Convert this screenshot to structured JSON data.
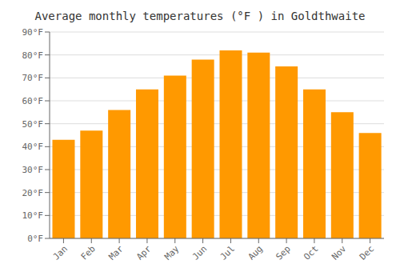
{
  "chart_data": {
    "type": "bar",
    "title": "Average monthly temperatures (°F ) in Goldthwaite",
    "categories": [
      "Jan",
      "Feb",
      "Mar",
      "Apr",
      "May",
      "Jun",
      "Jul",
      "Aug",
      "Sep",
      "Oct",
      "Nov",
      "Dec"
    ],
    "values": [
      43,
      47,
      56,
      65,
      71,
      78,
      82,
      81,
      75,
      65,
      55,
      46
    ],
    "color": "#FF9900",
    "ylim": [
      0,
      90
    ],
    "yticks": [
      {
        "value": 0,
        "label": "0°F"
      },
      {
        "value": 10,
        "label": "10°F"
      },
      {
        "value": 20,
        "label": "20°F"
      },
      {
        "value": 30,
        "label": "30°F"
      },
      {
        "value": 40,
        "label": "40°F"
      },
      {
        "value": 50,
        "label": "50°F"
      },
      {
        "value": 60,
        "label": "60°F"
      },
      {
        "value": 70,
        "label": "70°F"
      },
      {
        "value": 80,
        "label": "80°F"
      },
      {
        "value": 90,
        "label": "90°F"
      }
    ],
    "grid": true
  }
}
